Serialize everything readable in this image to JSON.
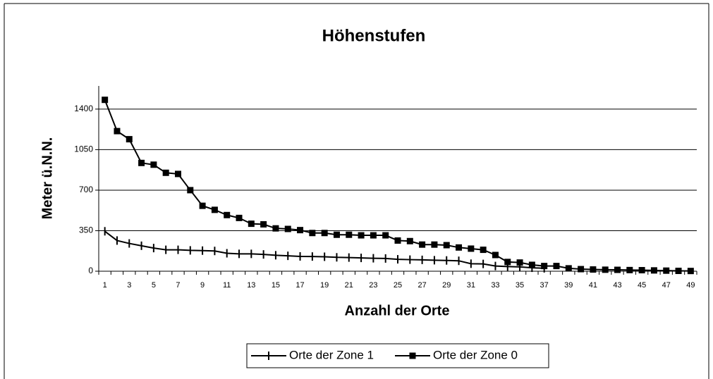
{
  "chart_data": {
    "type": "line",
    "title": "Höhenstufen",
    "xlabel": "Anzahl der Orte",
    "ylabel": "Meter ü.N.N.",
    "categories": [
      1,
      null,
      3,
      null,
      5,
      null,
      7,
      null,
      9,
      null,
      11,
      null,
      13,
      null,
      15,
      null,
      17,
      null,
      19,
      null,
      21,
      null,
      23,
      null,
      25,
      null,
      27,
      null,
      29,
      null,
      31,
      null,
      33,
      null,
      35,
      null,
      37,
      null,
      39,
      null,
      41,
      null,
      43,
      null,
      45,
      null,
      47,
      null,
      49
    ],
    "series": [
      {
        "name": "Orte der Zone 1",
        "color": "#000000",
        "marker": "plus",
        "values": [
          345,
          265,
          240,
          220,
          200,
          185,
          185,
          180,
          178,
          175,
          155,
          150,
          150,
          145,
          138,
          133,
          128,
          127,
          125,
          120,
          118,
          115,
          112,
          110,
          103,
          100,
          98,
          95,
          93,
          90,
          65,
          63,
          45,
          40,
          37,
          30,
          25,
          null,
          null,
          null,
          null,
          null,
          null,
          null,
          null,
          null,
          null,
          null,
          null
        ]
      },
      {
        "name": "Orte der Zone 0",
        "color": "#000000",
        "marker": "square",
        "values": [
          1480,
          1210,
          1140,
          935,
          920,
          850,
          840,
          700,
          565,
          530,
          485,
          460,
          410,
          405,
          370,
          365,
          355,
          330,
          330,
          315,
          315,
          310,
          310,
          310,
          265,
          260,
          230,
          230,
          225,
          205,
          195,
          185,
          140,
          80,
          75,
          55,
          45,
          45,
          25,
          18,
          15,
          13,
          12,
          10,
          9,
          7,
          5,
          3,
          2
        ]
      }
    ],
    "ylim": [
      0,
      1600
    ],
    "yticks": [
      0,
      350,
      700,
      1050,
      1400
    ],
    "grid": true,
    "legend": "bottom"
  }
}
